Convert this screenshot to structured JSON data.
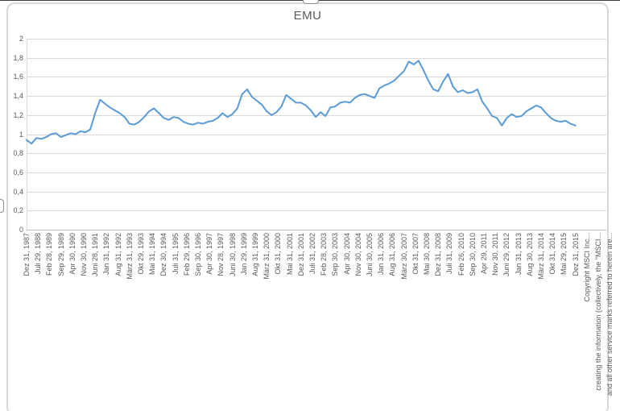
{
  "chart_data": {
    "type": "line",
    "title": "EMU",
    "legend": "none",
    "grid": true,
    "ylim": [
      0,
      2
    ],
    "y_gridline_step": 0.2,
    "y_tick_labels": [
      "2",
      "1,8",
      "1,6",
      "1,4",
      "1,2",
      "1",
      "0,8",
      "0,6",
      "0,4",
      "0,2",
      "0"
    ],
    "x_tick_labels": [
      "Dez 31, 1987",
      "Juli 29, 1988",
      "Feb 28, 1989",
      "Sep 29, 1989",
      "Apr 30, 1990",
      "Nov 30, 1990",
      "Juni 28, 1991",
      "Jan 31, 1992",
      "Aug 31, 1992",
      "März 31, 1993",
      "Okt 29, 1993",
      "Mai 31, 1994",
      "Dez 30, 1994",
      "Juli 31, 1995",
      "Feb 29, 1996",
      "Sep 30, 1996",
      "Apr 30, 1997",
      "Nov 28, 1997",
      "Juni 30, 1998",
      "Jan 29, 1999",
      "Aug 31, 1999",
      "März 31, 2000",
      "Okt 31, 2000",
      "Mai 31, 2001",
      "Dez 31, 2001",
      "Juli 31, 2002",
      "Feb 28, 2003",
      "Sep 30, 2003",
      "Apr 30, 2004",
      "Nov 30, 2004",
      "Juni 30, 2005",
      "Jan 31, 2006",
      "Aug 31, 2006",
      "März 30, 2007",
      "Okt 31, 2007",
      "Mai 30, 2008",
      "Dez 31, 2008",
      "Juli 31, 2009",
      "Feb 26, 2010",
      "Sep 30, 2010",
      "Apr 29, 2011",
      "Nov 30, 2011",
      "Juni 29, 2012",
      "Jan 31, 2013",
      "Aug 30, 2013",
      "März 31, 2014",
      "Okt 31, 2014",
      "Mai 29, 2015",
      "Dez 31, 2015"
    ],
    "disclaimer_labels": [
      "Copyright MSCI Inc...",
      "creating the information (collectively, the \"MSCI...",
      "and all other service marks referred to herein are..."
    ],
    "x_start": "1987-12",
    "x_end": "2015-12",
    "x_step_months": 3,
    "sampling_note": "series values estimated from chart pixels at quarterly resolution",
    "values": [
      0.94,
      0.9,
      0.96,
      0.95,
      0.97,
      1.0,
      1.01,
      0.97,
      0.99,
      1.01,
      1.0,
      1.03,
      1.02,
      1.05,
      1.22,
      1.36,
      1.32,
      1.28,
      1.25,
      1.22,
      1.18,
      1.11,
      1.1,
      1.13,
      1.18,
      1.24,
      1.27,
      1.22,
      1.17,
      1.15,
      1.18,
      1.17,
      1.13,
      1.11,
      1.1,
      1.12,
      1.11,
      1.13,
      1.14,
      1.17,
      1.22,
      1.18,
      1.21,
      1.27,
      1.42,
      1.47,
      1.39,
      1.35,
      1.31,
      1.24,
      1.2,
      1.23,
      1.29,
      1.41,
      1.37,
      1.33,
      1.33,
      1.3,
      1.25,
      1.18,
      1.23,
      1.19,
      1.28,
      1.29,
      1.33,
      1.34,
      1.33,
      1.38,
      1.41,
      1.42,
      1.4,
      1.38,
      1.48,
      1.51,
      1.53,
      1.56,
      1.61,
      1.66,
      1.76,
      1.73,
      1.77,
      1.67,
      1.56,
      1.47,
      1.45,
      1.55,
      1.63,
      1.5,
      1.44,
      1.46,
      1.43,
      1.44,
      1.47,
      1.34,
      1.27,
      1.19,
      1.17,
      1.09,
      1.17,
      1.21,
      1.18,
      1.19,
      1.24,
      1.27,
      1.3,
      1.28,
      1.22,
      1.17,
      1.14,
      1.13,
      1.14,
      1.11,
      1.09
    ],
    "colors": {
      "series_line": "#5b9bd5",
      "gridline": "#d9d9d9",
      "axis_line": "#bfbfbf",
      "text": "#595959",
      "chart_border": "#d9d9d9"
    }
  }
}
